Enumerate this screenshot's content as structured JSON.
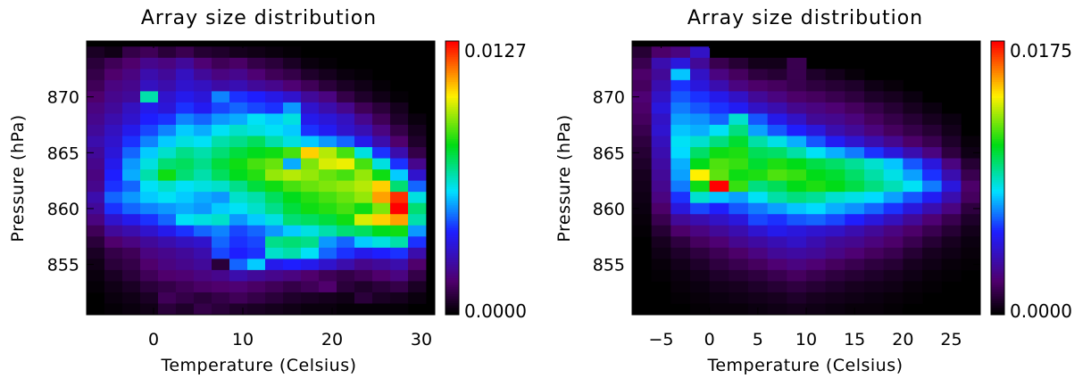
{
  "chart_data": [
    {
      "type": "heatmap",
      "title": "Array size distribution",
      "xlabel": "Temperature (Celsius)",
      "ylabel": "Pressure (hPa)",
      "xlim": [
        -7.5,
        31.5
      ],
      "ylim": [
        850.5,
        875
      ],
      "xticks": [
        "0",
        "10",
        "20",
        "30"
      ],
      "xtick_values": [
        0,
        10,
        20,
        30
      ],
      "yticks": [
        "855",
        "860",
        "865",
        "870"
      ],
      "ytick_values": [
        855,
        860,
        865,
        870
      ],
      "colorbar": {
        "min_label": "0.0000",
        "max_label": "0.0127",
        "min": 0.0,
        "max": 0.0127,
        "colormap": "rainbow",
        "background": "#000000"
      },
      "x_bins": [
        -6.5,
        -4.5,
        -2.5,
        -0.5,
        1.5,
        3.5,
        5.5,
        7.5,
        9.5,
        11.5,
        13.5,
        15.5,
        17.5,
        19.5,
        21.5,
        23.5,
        25.5,
        27.5,
        29.5
      ],
      "y_bins": [
        874,
        873,
        872,
        871,
        870,
        869,
        868,
        867,
        866,
        865,
        864,
        863,
        862,
        861,
        860,
        859,
        858,
        857,
        856,
        855,
        854,
        853,
        852,
        851
      ],
      "values": [
        [
          0.0005,
          0.0003,
          0.001,
          0.0012,
          0.0008,
          0.0011,
          0.0007,
          0.0006,
          0.0004,
          0.0003,
          0.0002,
          0.0001,
          0,
          0,
          0,
          0,
          0,
          0,
          0
        ],
        [
          0.0008,
          0.0012,
          0.0015,
          0.002,
          0.0018,
          0.0022,
          0.0016,
          0.0012,
          0.0014,
          0.001,
          0.0008,
          0.0005,
          0.0002,
          0.0001,
          0,
          0,
          0,
          0,
          0
        ],
        [
          0.001,
          0.0015,
          0.0018,
          0.0025,
          0.0022,
          0.0028,
          0.0022,
          0.0018,
          0.002,
          0.0016,
          0.0012,
          0.001,
          0.0006,
          0.0004,
          0.0002,
          0.0001,
          0,
          0,
          0
        ],
        [
          0.0012,
          0.0018,
          0.002,
          0.0028,
          0.0025,
          0.003,
          0.0028,
          0.0024,
          0.0026,
          0.0022,
          0.002,
          0.0016,
          0.0012,
          0.0008,
          0.0005,
          0.0003,
          0.0001,
          0,
          0
        ],
        [
          0.0015,
          0.002,
          0.0022,
          0.0065,
          0.003,
          0.0035,
          0.0032,
          0.0048,
          0.004,
          0.0038,
          0.0034,
          0.003,
          0.0022,
          0.0018,
          0.001,
          0.0006,
          0.0003,
          0.0001,
          0
        ],
        [
          0.0018,
          0.0022,
          0.0028,
          0.0035,
          0.0032,
          0.004,
          0.0036,
          0.0042,
          0.0045,
          0.0042,
          0.004,
          0.005,
          0.003,
          0.0025,
          0.002,
          0.0012,
          0.0008,
          0.0004,
          0
        ],
        [
          0.002,
          0.0025,
          0.003,
          0.0038,
          0.004,
          0.0048,
          0.0045,
          0.005,
          0.0052,
          0.0058,
          0.0055,
          0.006,
          0.0035,
          0.0032,
          0.0028,
          0.002,
          0.0012,
          0.0006,
          0.0002
        ],
        [
          0.0022,
          0.0028,
          0.0035,
          0.0042,
          0.0048,
          0.0055,
          0.0052,
          0.0058,
          0.0062,
          0.006,
          0.0058,
          0.0055,
          0.004,
          0.0036,
          0.003,
          0.0026,
          0.0018,
          0.001,
          0.0004
        ],
        [
          0.0025,
          0.003,
          0.004,
          0.0048,
          0.0055,
          0.006,
          0.0058,
          0.0065,
          0.0068,
          0.0072,
          0.0065,
          0.006,
          0.0055,
          0.005,
          0.0045,
          0.0035,
          0.0025,
          0.0015,
          0.0006
        ],
        [
          0.0022,
          0.0032,
          0.0045,
          0.0055,
          0.0062,
          0.0068,
          0.0065,
          0.007,
          0.0075,
          0.0078,
          0.008,
          0.0085,
          0.0105,
          0.0095,
          0.0085,
          0.006,
          0.004,
          0.0025,
          0.001
        ],
        [
          0.002,
          0.0035,
          0.005,
          0.006,
          0.007,
          0.0072,
          0.0068,
          0.0075,
          0.008,
          0.0085,
          0.0088,
          0.0052,
          0.009,
          0.0098,
          0.01,
          0.0085,
          0.006,
          0.004,
          0.002
        ],
        [
          0.0018,
          0.0038,
          0.0052,
          0.0065,
          0.008,
          0.007,
          0.0065,
          0.0072,
          0.0078,
          0.0082,
          0.0092,
          0.0095,
          0.0092,
          0.0088,
          0.0085,
          0.0092,
          0.008,
          0.0055,
          0.003
        ],
        [
          0.002,
          0.004,
          0.0045,
          0.0058,
          0.0062,
          0.0058,
          0.006,
          0.0062,
          0.0068,
          0.0075,
          0.008,
          0.0085,
          0.0088,
          0.009,
          0.0092,
          0.0095,
          0.0105,
          0.007,
          0.0045
        ],
        [
          0.0025,
          0.0045,
          0.005,
          0.0055,
          0.0058,
          0.0055,
          0.0052,
          0.005,
          0.0062,
          0.0065,
          0.0072,
          0.0078,
          0.0082,
          0.0085,
          0.0088,
          0.0092,
          0.011,
          0.0122,
          0.006
        ],
        [
          0.0022,
          0.004,
          0.0045,
          0.0048,
          0.005,
          0.0052,
          0.005,
          0.0055,
          0.0058,
          0.0062,
          0.0068,
          0.0075,
          0.008,
          0.0082,
          0.0085,
          0.008,
          0.009,
          0.0127,
          0.007
        ],
        [
          0.0018,
          0.003,
          0.0035,
          0.004,
          0.0045,
          0.0058,
          0.006,
          0.0062,
          0.005,
          0.0055,
          0.006,
          0.007,
          0.0072,
          0.0075,
          0.008,
          0.0098,
          0.0105,
          0.011,
          0.0065
        ],
        [
          0.0012,
          0.0022,
          0.0025,
          0.003,
          0.0035,
          0.004,
          0.0045,
          0.0048,
          0.0042,
          0.0045,
          0.005,
          0.0055,
          0.006,
          0.0065,
          0.007,
          0.0072,
          0.0078,
          0.008,
          0.005
        ],
        [
          0.0008,
          0.0015,
          0.0018,
          0.0022,
          0.0025,
          0.0028,
          0.003,
          0.0045,
          0.004,
          0.0042,
          0.0068,
          0.007,
          0.0068,
          0.005,
          0.0045,
          0.0055,
          0.006,
          0.0065,
          0.004
        ],
        [
          0.0005,
          0.001,
          0.0012,
          0.0018,
          0.002,
          0.0022,
          0.0025,
          0.0042,
          0.0038,
          0.004,
          0.0062,
          0.0065,
          0.0058,
          0.0045,
          0.004,
          0.0035,
          0.0038,
          0.004,
          0.0025
        ],
        [
          0.0003,
          0.0008,
          0.001,
          0.0015,
          0.0018,
          0.002,
          0.0022,
          0.0008,
          0.0045,
          0.0055,
          0.0035,
          0.0038,
          0.0035,
          0.003,
          0.0025,
          0.002,
          0.0022,
          0.0025,
          0.0015
        ],
        [
          0.0002,
          0.0005,
          0.0008,
          0.0012,
          0.0015,
          0.0016,
          0.0018,
          0.002,
          0.0025,
          0.0022,
          0.002,
          0.0018,
          0.0015,
          0.0012,
          0.001,
          0.0012,
          0.0015,
          0.0018,
          0.001
        ],
        [
          0.0001,
          0.0003,
          0.0005,
          0.0008,
          0.001,
          0.0012,
          0.0014,
          0.0015,
          0.0016,
          0.0014,
          0.0012,
          0.001,
          0.0012,
          0.0015,
          0.0008,
          0.0006,
          0.0008,
          0.001,
          0.0005
        ],
        [
          0,
          0.0002,
          0.0003,
          0.0005,
          0.0012,
          0.001,
          0.0008,
          0.001,
          0.0012,
          0.001,
          0.0008,
          0.0006,
          0.0005,
          0.0004,
          0.0003,
          0.0008,
          0.0005,
          0.0004,
          0.0002
        ],
        [
          0,
          0.0001,
          0.0002,
          0.0003,
          0.0008,
          0.0006,
          0.001,
          0.0008,
          0.0006,
          0.0005,
          0.0004,
          0.0003,
          0.0002,
          0.0002,
          0.0001,
          0.0001,
          0.0001,
          0.0001,
          0
        ]
      ]
    },
    {
      "type": "heatmap",
      "title": "Array size distribution",
      "xlabel": "Temperature (Celsius)",
      "ylabel": "Pressure (hPa)",
      "xlim": [
        -8,
        28
      ],
      "ylim": [
        850.5,
        875
      ],
      "xticks": [
        "−5",
        "0",
        "5",
        "10",
        "15",
        "20",
        "25"
      ],
      "xtick_values": [
        -5,
        0,
        5,
        10,
        15,
        20,
        25
      ],
      "yticks": [
        "855",
        "860",
        "865",
        "870"
      ],
      "ytick_values": [
        855,
        860,
        865,
        870
      ],
      "colorbar": {
        "min_label": "0.0000",
        "max_label": "0.0175",
        "min": 0.0,
        "max": 0.0175,
        "colormap": "rainbow",
        "background": "#000000"
      },
      "x_bins": [
        -7,
        -5,
        -3,
        -1,
        1,
        3,
        5,
        7,
        9,
        11,
        13,
        15,
        17,
        19,
        21,
        23,
        25,
        27
      ],
      "y_bins": [
        874,
        873,
        872,
        871,
        870,
        869,
        868,
        867,
        866,
        865,
        864,
        863,
        862,
        861,
        860,
        859,
        858,
        857,
        856,
        855,
        854,
        853,
        852,
        851
      ],
      "values": [
        [
          0.001,
          0.002,
          0.0025,
          0.004,
          0,
          0,
          0,
          0,
          0,
          0,
          0,
          0,
          0,
          0,
          0,
          0,
          0,
          0
        ],
        [
          0.0015,
          0.0035,
          0.0045,
          0.003,
          0.0015,
          0.001,
          0.0005,
          0.0005,
          0.0015,
          0,
          0,
          0,
          0,
          0,
          0,
          0,
          0,
          0
        ],
        [
          0.002,
          0.003,
          0.0075,
          0.004,
          0.0025,
          0.0018,
          0.0012,
          0.001,
          0.0015,
          0.0008,
          0.0005,
          0.0002,
          0,
          0,
          0,
          0,
          0,
          0
        ],
        [
          0.0018,
          0.0035,
          0.0055,
          0.0045,
          0.0035,
          0.0025,
          0.002,
          0.0018,
          0.0015,
          0.0012,
          0.001,
          0.0008,
          0.0004,
          0.0002,
          0,
          0,
          0,
          0
        ],
        [
          0.0022,
          0.004,
          0.006,
          0.0055,
          0.0048,
          0.004,
          0.003,
          0.0025,
          0.002,
          0.0018,
          0.0015,
          0.0012,
          0.0008,
          0.0006,
          0.0003,
          0,
          0,
          0
        ],
        [
          0.002,
          0.0045,
          0.0065,
          0.006,
          0.0055,
          0.005,
          0.004,
          0.0035,
          0.0028,
          0.0025,
          0.0022,
          0.0018,
          0.0014,
          0.001,
          0.0006,
          0.0003,
          0,
          0
        ],
        [
          0.0018,
          0.004,
          0.007,
          0.0068,
          0.0062,
          0.0085,
          0.006,
          0.0048,
          0.004,
          0.003,
          0.0028,
          0.0024,
          0.0018,
          0.0014,
          0.001,
          0.0006,
          0.0003,
          0
        ],
        [
          0.0015,
          0.0042,
          0.0075,
          0.0072,
          0.008,
          0.0095,
          0.007,
          0.006,
          0.0052,
          0.0045,
          0.0035,
          0.003,
          0.0024,
          0.0018,
          0.0014,
          0.001,
          0.0005,
          0
        ],
        [
          0.0012,
          0.0038,
          0.008,
          0.0085,
          0.0095,
          0.0105,
          0.009,
          0.0082,
          0.0072,
          0.006,
          0.005,
          0.0042,
          0.0035,
          0.0028,
          0.002,
          0.0015,
          0.0008,
          0.0002
        ],
        [
          0.001,
          0.0035,
          0.0078,
          0.0098,
          0.011,
          0.0112,
          0.01,
          0.0098,
          0.009,
          0.008,
          0.0072,
          0.0065,
          0.0055,
          0.0045,
          0.0035,
          0.0025,
          0.0012,
          0.0004
        ],
        [
          0.0008,
          0.0032,
          0.0072,
          0.0108,
          0.0118,
          0.0115,
          0.0105,
          0.0112,
          0.0108,
          0.0102,
          0.0098,
          0.0092,
          0.0085,
          0.0075,
          0.006,
          0.0045,
          0.0025,
          0.001
        ],
        [
          0.0006,
          0.003,
          0.007,
          0.014,
          0.012,
          0.011,
          0.0112,
          0.0118,
          0.0115,
          0.0108,
          0.0105,
          0.0098,
          0.009,
          0.0082,
          0.007,
          0.0055,
          0.0035,
          0.0015
        ],
        [
          0.0005,
          0.0028,
          0.0065,
          0.011,
          0.0175,
          0.0115,
          0.0095,
          0.01,
          0.0108,
          0.0112,
          0.0108,
          0.0102,
          0.0095,
          0.0088,
          0.008,
          0.0065,
          0.0045,
          0.002
        ],
        [
          0.0004,
          0.0025,
          0.0055,
          0.0085,
          0.0075,
          0.007,
          0.008,
          0.009,
          0.0095,
          0.0092,
          0.0085,
          0.0082,
          0.0078,
          0.007,
          0.006,
          0.005,
          0.0035,
          0.0018
        ],
        [
          0.0003,
          0.002,
          0.0045,
          0.0058,
          0.0052,
          0.006,
          0.0065,
          0.007,
          0.0075,
          0.0078,
          0.0072,
          0.0068,
          0.0062,
          0.0055,
          0.0045,
          0.0035,
          0.0025,
          0.0012
        ],
        [
          0.0002,
          0.0015,
          0.003,
          0.0035,
          0.004,
          0.0045,
          0.0058,
          0.0055,
          0.006,
          0.0062,
          0.0058,
          0.0052,
          0.0045,
          0.0038,
          0.003,
          0.0022,
          0.0015,
          0.0008
        ],
        [
          0.0001,
          0.001,
          0.002,
          0.0025,
          0.003,
          0.0035,
          0.0042,
          0.0048,
          0.0045,
          0.0042,
          0.004,
          0.0035,
          0.003,
          0.0025,
          0.002,
          0.0015,
          0.001,
          0.0005
        ],
        [
          0,
          0.0006,
          0.0012,
          0.0018,
          0.0022,
          0.0028,
          0.0032,
          0.0036,
          0.004,
          0.0035,
          0.003,
          0.0028,
          0.0024,
          0.002,
          0.0015,
          0.001,
          0.0006,
          0.0003
        ],
        [
          0,
          0.0004,
          0.0008,
          0.0012,
          0.0016,
          0.002,
          0.0025,
          0.003,
          0.0032,
          0.003,
          0.0026,
          0.0022,
          0.0018,
          0.0015,
          0.001,
          0.0006,
          0.0004,
          0.0002
        ],
        [
          0,
          0.0002,
          0.0005,
          0.0008,
          0.0012,
          0.0015,
          0.0018,
          0.0022,
          0.0025,
          0.0022,
          0.0018,
          0.0015,
          0.0012,
          0.001,
          0.0006,
          0.0004,
          0.0002,
          0.0001
        ],
        [
          0,
          0.0001,
          0.0003,
          0.0005,
          0.0008,
          0.001,
          0.0012,
          0.0015,
          0.0018,
          0.0015,
          0.0012,
          0.001,
          0.0008,
          0.0006,
          0.0004,
          0.0002,
          0.0001,
          0
        ],
        [
          0,
          0,
          0.0002,
          0.0003,
          0.0005,
          0.0006,
          0.0008,
          0.001,
          0.0012,
          0.001,
          0.0008,
          0.0006,
          0.0005,
          0.0004,
          0.0002,
          0.0001,
          0,
          0
        ],
        [
          0,
          0,
          0.0001,
          0.0002,
          0.0003,
          0.0004,
          0.0005,
          0.0006,
          0.0008,
          0.0006,
          0.0005,
          0.0004,
          0.0003,
          0.0002,
          0.0001,
          0,
          0,
          0
        ],
        [
          0,
          0,
          0,
          0.0001,
          0.0002,
          0.0002,
          0.0003,
          0.0004,
          0.0005,
          0.0004,
          0.0003,
          0.0002,
          0.0002,
          0.0001,
          0,
          0,
          0,
          0
        ]
      ]
    }
  ]
}
